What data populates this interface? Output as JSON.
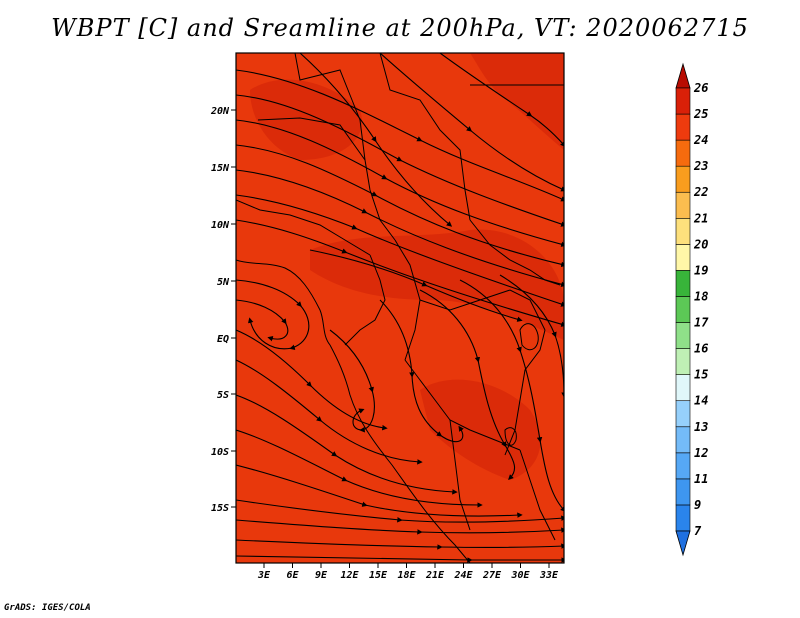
{
  "title": "WBPT [C] and Sreamline at 200hPa, VT: 2020062715",
  "footer": "GrADS: IGES/COLA",
  "map": {
    "lat_ticks": [
      "20N",
      "15N",
      "10N",
      "5N",
      "EQ",
      "5S",
      "10S",
      "15S"
    ],
    "lon_ticks": [
      "3E",
      "6E",
      "9E",
      "12E",
      "15E",
      "18E",
      "21E",
      "24E",
      "27E",
      "30E",
      "33E"
    ]
  },
  "colorbar": {
    "labels": [
      "7",
      "9",
      "11",
      "12",
      "13",
      "14",
      "15",
      "16",
      "17",
      "18",
      "19",
      "20",
      "21",
      "22",
      "23",
      "24",
      "25",
      "26"
    ],
    "colors": [
      "#1f70e0",
      "#2a84ec",
      "#3e96f0",
      "#56a8f5",
      "#74bbf8",
      "#96d0fb",
      "#e0f7fa",
      "#bff0b5",
      "#8fe089",
      "#5cc856",
      "#38b43a",
      "#fff7a8",
      "#fde07c",
      "#fbbd4f",
      "#f99d1e",
      "#f66b0e",
      "#ee3b0e",
      "#d92008",
      "#b80c02"
    ]
  },
  "colors": {
    "field_main": "#e8380c",
    "field_dark": "#cf2107",
    "streamline": "#000000",
    "border": "#000000"
  }
}
